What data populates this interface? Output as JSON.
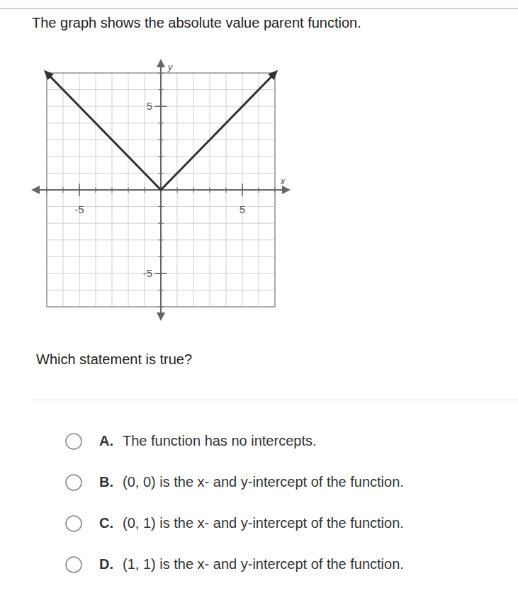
{
  "prompt": "The graph shows the absolute value parent function.",
  "chart_data": {
    "type": "line",
    "x_label": "x",
    "y_label": "y",
    "x": [
      -7,
      0,
      7
    ],
    "values": [
      7,
      0,
      7
    ],
    "color": "#333333",
    "xlim": [
      -7,
      7
    ],
    "ylim": [
      -7,
      7
    ],
    "xticks": [
      -5,
      5
    ],
    "yticks": [
      -5,
      5
    ],
    "grid": true
  },
  "question": "Which statement is true?",
  "options": [
    {
      "letter": "A.",
      "text": "The function has no intercepts."
    },
    {
      "letter": "B.",
      "text": "(0, 0) is the x- and y-intercept of the function."
    },
    {
      "letter": "C.",
      "text": "(0, 1) is the x- and y-intercept of the function."
    },
    {
      "letter": "D.",
      "text": "(1, 1) is the x- and y-intercept of the function."
    }
  ]
}
